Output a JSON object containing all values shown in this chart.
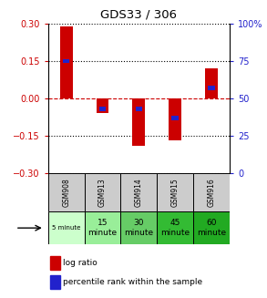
{
  "title": "GDS33 / 306",
  "samples": [
    "GSM908",
    "GSM913",
    "GSM914",
    "GSM915",
    "GSM916"
  ],
  "log_ratios": [
    0.29,
    -0.06,
    -0.19,
    -0.17,
    0.12
  ],
  "percentile_ranks": [
    75,
    43,
    43,
    37,
    57
  ],
  "bar_width": 0.35,
  "ylim": [
    -0.3,
    0.3
  ],
  "y2lim": [
    0,
    100
  ],
  "yticks": [
    -0.3,
    -0.15,
    0,
    0.15,
    0.3
  ],
  "y2ticks": [
    0,
    25,
    50,
    75,
    100
  ],
  "y2ticklabels": [
    "0",
    "25",
    "50",
    "75",
    "100%"
  ],
  "red_color": "#cc0000",
  "blue_color": "#2222cc",
  "bg_color": "#ffffff",
  "sample_header_color": "#cccccc",
  "time_labels": [
    "5 minute",
    "15\nminute",
    "30\nminute",
    "45\nminute",
    "60\nminute"
  ],
  "time_colors": [
    "#ccffcc",
    "#99ee99",
    "#66cc66",
    "#33bb33",
    "#22aa22"
  ],
  "legend_red": "log ratio",
  "legend_blue": "percentile rank within the sample"
}
